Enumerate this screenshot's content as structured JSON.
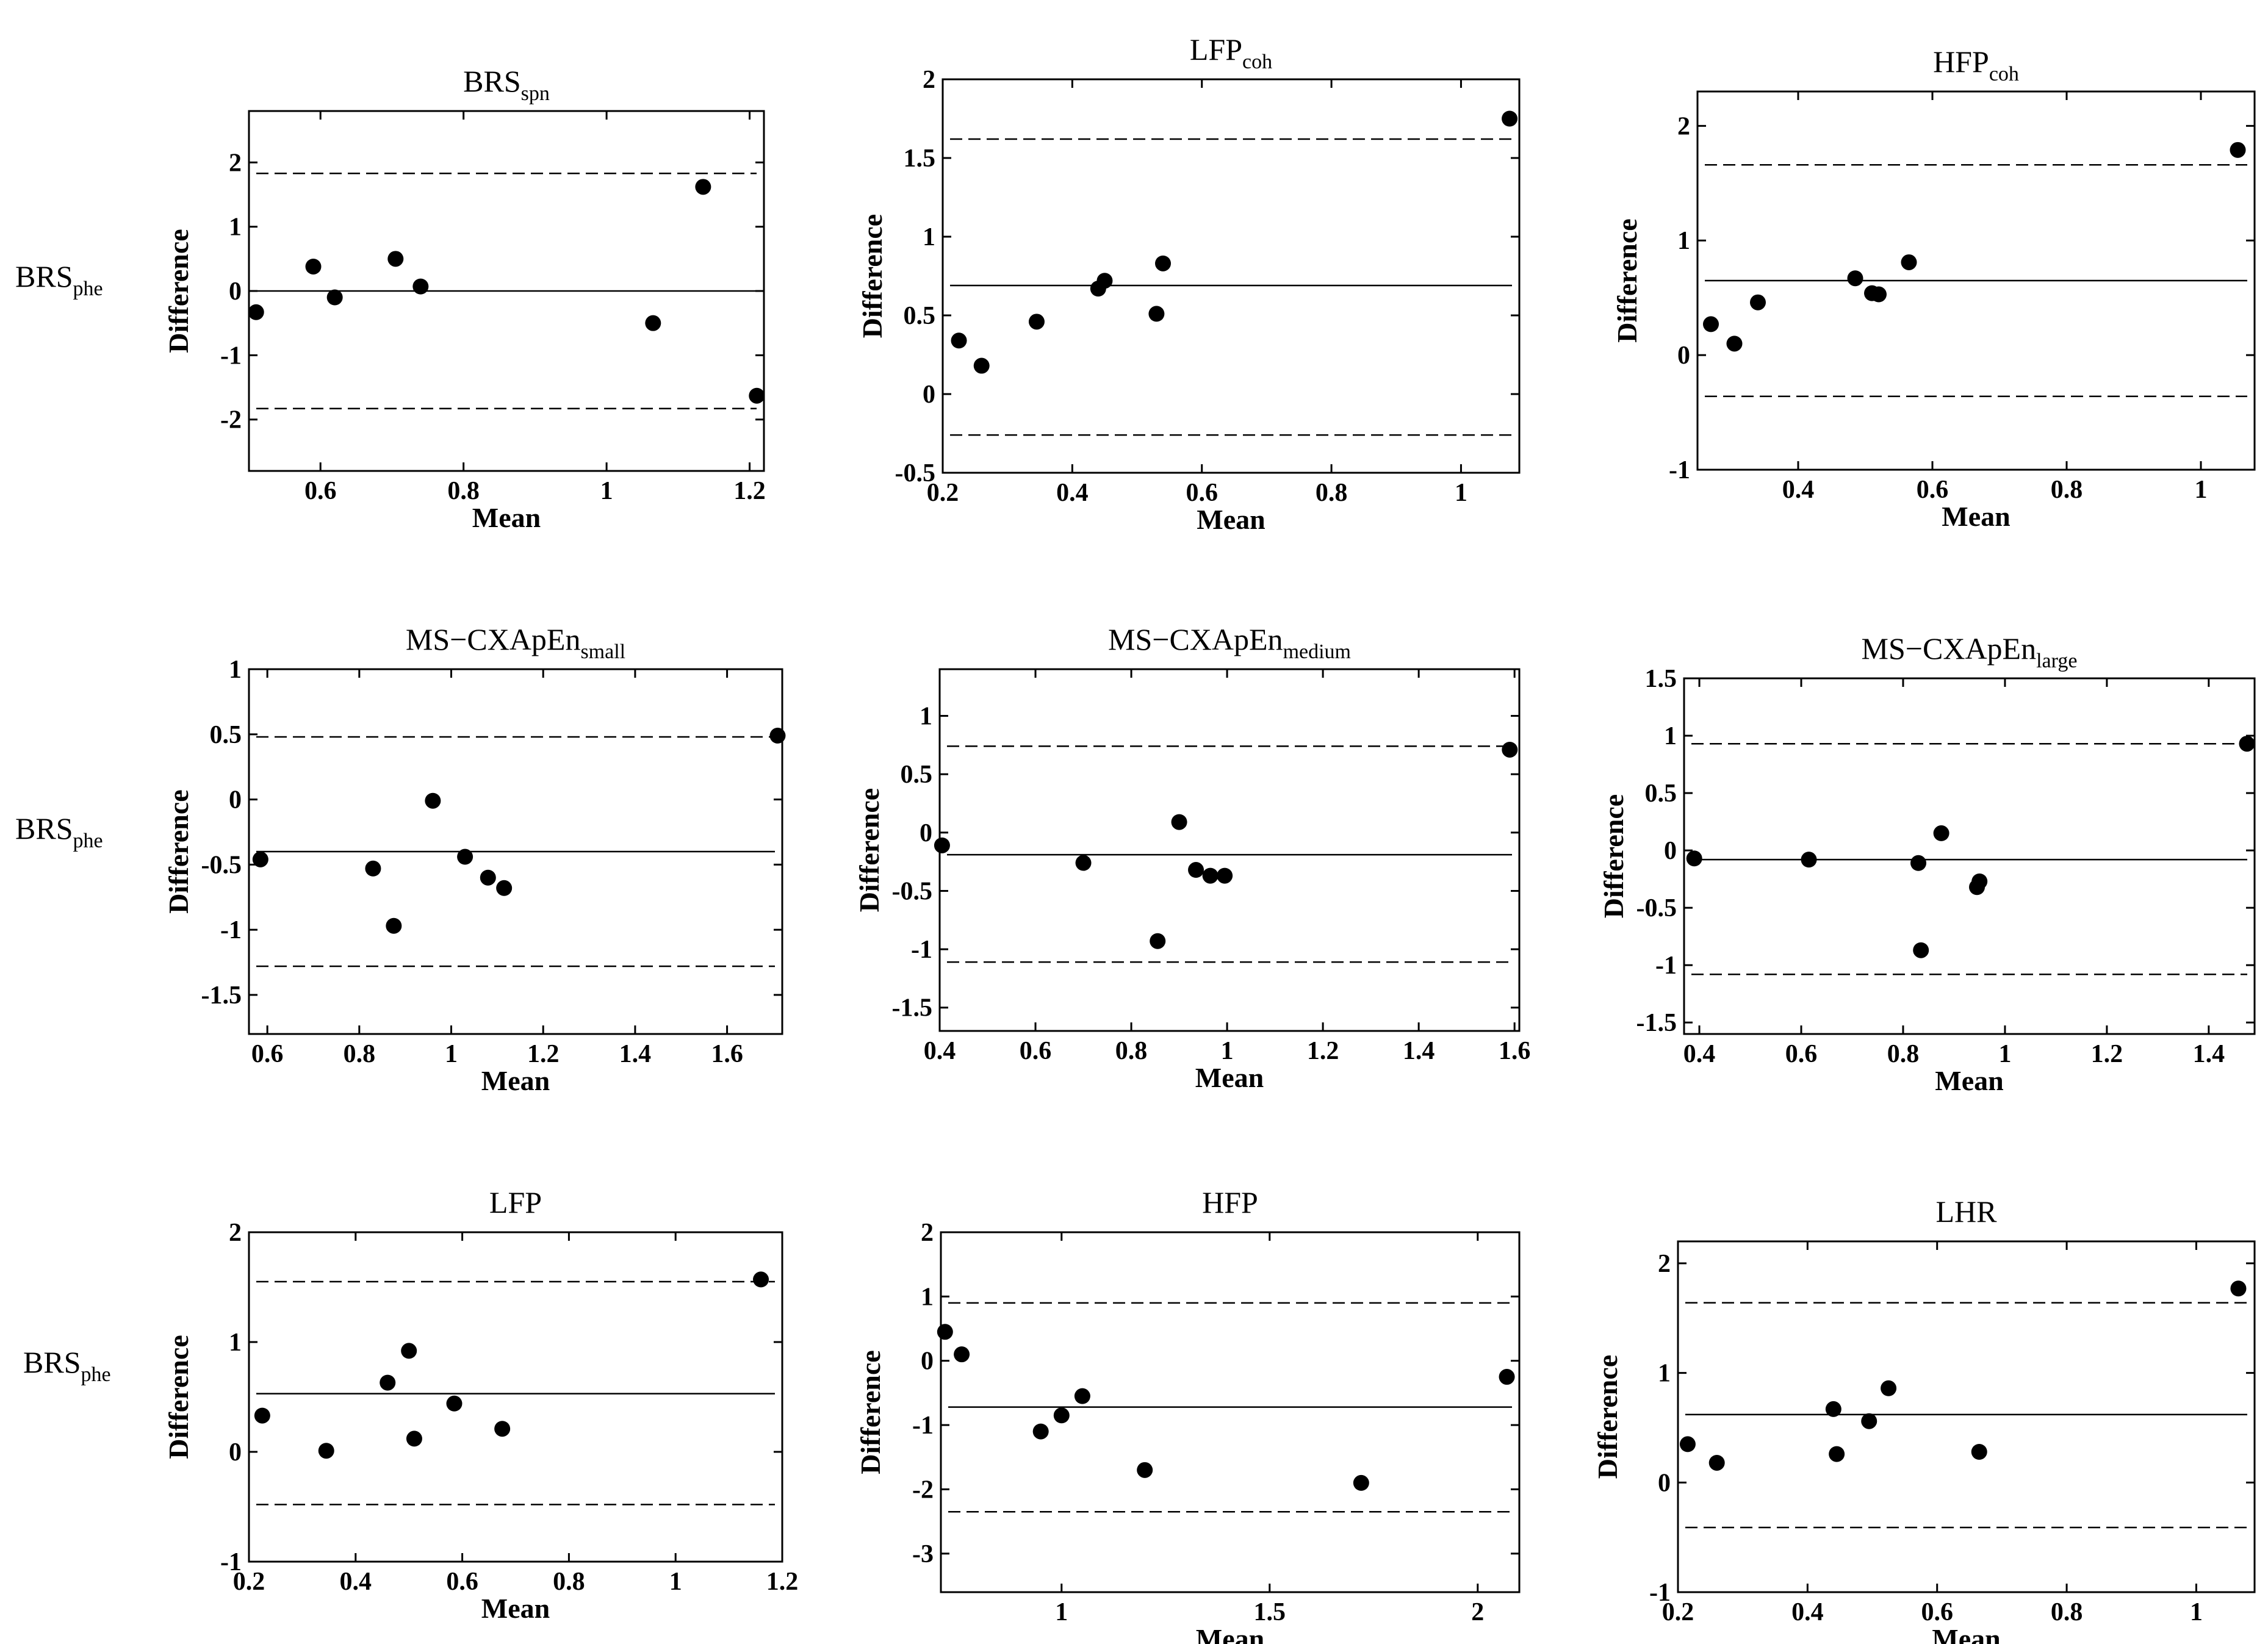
{
  "row_labels": [
    {
      "main": "BRS",
      "sub": "phe"
    },
    {
      "main": "BRS",
      "sub": "phe"
    },
    {
      "main": "BRS",
      "sub": "phe"
    }
  ],
  "chart_data": [
    {
      "type": "scatter",
      "title": "BRS",
      "title_sub": "spn",
      "xlabel": "Mean",
      "ylabel": "Difference",
      "xlim": [
        0.5,
        1.22
      ],
      "ylim": [
        -2.8,
        2.8
      ],
      "xticks": [
        0.6,
        0.8,
        1,
        1.2
      ],
      "xtick_labels": [
        "0.6",
        "0.8",
        "1",
        "1.2"
      ],
      "yticks": [
        -2,
        -1,
        0,
        1,
        2
      ],
      "ytick_labels": [
        "-2",
        "-1",
        "0",
        "1",
        "2"
      ],
      "x": [
        0.51,
        0.59,
        0.62,
        0.705,
        0.74,
        1.065,
        1.135,
        1.21
      ],
      "y": [
        -0.33,
        0.38,
        -0.1,
        0.5,
        0.07,
        -0.5,
        1.62,
        -1.63
      ],
      "mean_line": 0.0,
      "limits": [
        1.83,
        -1.83
      ]
    },
    {
      "type": "scatter",
      "title": "LFP",
      "title_sub": "coh",
      "xlabel": "Mean",
      "ylabel": "Difference",
      "xlim": [
        0.2,
        1.09
      ],
      "ylim": [
        -0.5,
        2
      ],
      "xticks": [
        0.2,
        0.4,
        0.6,
        0.8,
        1
      ],
      "xtick_labels": [
        "0.2",
        "0.4",
        "0.6",
        "0.8",
        "1"
      ],
      "yticks": [
        -0.5,
        0,
        0.5,
        1,
        1.5,
        2
      ],
      "ytick_labels": [
        "-0.5",
        "0",
        "0.5",
        "1",
        "1.5",
        "2"
      ],
      "x": [
        0.225,
        0.26,
        0.345,
        0.44,
        0.45,
        0.53,
        0.54,
        1.075
      ],
      "y": [
        0.34,
        0.18,
        0.46,
        0.67,
        0.72,
        0.51,
        0.83,
        1.75
      ],
      "mean_line": 0.69,
      "limits": [
        1.62,
        -0.26
      ]
    },
    {
      "type": "scatter",
      "title": "HFP",
      "title_sub": "coh",
      "xlabel": "Mean",
      "ylabel": "Difference",
      "xlim": [
        0.25,
        1.08
      ],
      "ylim": [
        -1,
        2.3
      ],
      "xticks": [
        0.4,
        0.6,
        0.8,
        1
      ],
      "xtick_labels": [
        "0.4",
        "0.6",
        "0.8",
        "1"
      ],
      "yticks": [
        -1,
        0,
        1,
        2
      ],
      "ytick_labels": [
        "-1",
        "0",
        "1",
        "2"
      ],
      "x": [
        0.27,
        0.305,
        0.34,
        0.485,
        0.51,
        0.52,
        0.565,
        1.055
      ],
      "y": [
        0.27,
        0.1,
        0.46,
        0.67,
        0.54,
        0.53,
        0.81,
        1.79
      ],
      "mean_line": 0.65,
      "limits": [
        1.66,
        -0.36
      ]
    },
    {
      "type": "scatter",
      "title": "MS−CXApEn",
      "title_sub": "small",
      "xlabel": "Mean",
      "ylabel": "Difference",
      "xlim": [
        0.56,
        1.72
      ],
      "ylim": [
        -1.8,
        1
      ],
      "xticks": [
        0.6,
        0.8,
        1,
        1.2,
        1.4,
        1.6
      ],
      "xtick_labels": [
        "0.6",
        "0.8",
        "1",
        "1.2",
        "1.4",
        "1.6"
      ],
      "yticks": [
        -1.5,
        -1,
        -0.5,
        0,
        0.5,
        1
      ],
      "ytick_labels": [
        "-1.5",
        "-1",
        "-0.5",
        "0",
        "0.5",
        "1"
      ],
      "x": [
        0.585,
        0.83,
        0.875,
        0.96,
        1.03,
        1.08,
        1.115,
        1.71
      ],
      "y": [
        -0.46,
        -0.53,
        -0.97,
        -0.01,
        -0.44,
        -0.6,
        -0.68,
        0.49
      ],
      "mean_line": -0.4,
      "limits": [
        0.48,
        -1.28
      ]
    },
    {
      "type": "scatter",
      "title": "MS−CXApEn",
      "title_sub": "medium",
      "xlabel": "Mean",
      "ylabel": "Difference",
      "xlim": [
        0.4,
        1.61
      ],
      "ylim": [
        -1.7,
        1.4
      ],
      "xticks": [
        0.4,
        0.6,
        0.8,
        1,
        1.2,
        1.4,
        1.6
      ],
      "xtick_labels": [
        "0.4",
        "0.6",
        "0.8",
        "1",
        "1.2",
        "1.4",
        "1.6"
      ],
      "yticks": [
        -1.5,
        -1,
        -0.5,
        0,
        0.5,
        1
      ],
      "ytick_labels": [
        "-1.5",
        "-1",
        "-0.5",
        "0",
        "0.5",
        "1"
      ],
      "x": [
        0.405,
        0.7,
        0.855,
        0.9,
        0.935,
        0.965,
        0.995,
        1.59
      ],
      "y": [
        -0.11,
        -0.26,
        -0.93,
        0.09,
        -0.32,
        -0.37,
        -0.37,
        0.71
      ],
      "mean_line": -0.19,
      "limits": [
        0.74,
        -1.11
      ]
    },
    {
      "type": "scatter",
      "title": "MS−CXApEn",
      "title_sub": "large",
      "xlabel": "Mean",
      "ylabel": "Difference",
      "xlim": [
        0.37,
        1.49
      ],
      "ylim": [
        -1.6,
        1.5
      ],
      "xticks": [
        0.4,
        0.6,
        0.8,
        1,
        1.2,
        1.4
      ],
      "xtick_labels": [
        "0.4",
        "0.6",
        "0.8",
        "1",
        "1.2",
        "1.4"
      ],
      "yticks": [
        -1.5,
        -1,
        -0.5,
        0,
        0.5,
        1,
        1.5
      ],
      "ytick_labels": [
        "-1.5",
        "-1",
        "-0.5",
        "0",
        "0.5",
        "1",
        "1.5"
      ],
      "x": [
        0.39,
        0.615,
        0.83,
        0.835,
        0.875,
        0.945,
        0.95,
        1.475
      ],
      "y": [
        -0.07,
        -0.08,
        -0.11,
        -0.87,
        0.15,
        -0.32,
        -0.27,
        0.93
      ],
      "mean_line": -0.08,
      "limits": [
        0.93,
        -1.08
      ]
    },
    {
      "type": "scatter",
      "title": "LFP",
      "title_sub": "",
      "xlabel": "Mean",
      "ylabel": "Difference",
      "xlim": [
        0.2,
        1.2
      ],
      "ylim": [
        -1,
        2
      ],
      "xticks": [
        0.2,
        0.4,
        0.6,
        0.8,
        1,
        1.2
      ],
      "xtick_labels": [
        "0.2",
        "0.4",
        "0.6",
        "0.8",
        "1",
        "1.2"
      ],
      "yticks": [
        -1,
        0,
        1,
        2
      ],
      "ytick_labels": [
        "-1",
        "0",
        "1",
        "2"
      ],
      "x": [
        0.225,
        0.345,
        0.46,
        0.5,
        0.51,
        0.585,
        0.675,
        1.16
      ],
      "y": [
        0.33,
        0.01,
        0.63,
        0.92,
        0.12,
        0.44,
        0.21,
        1.57
      ],
      "mean_line": 0.53,
      "limits": [
        1.55,
        -0.48
      ]
    },
    {
      "type": "scatter",
      "title": "HFP",
      "title_sub": "",
      "xlabel": "Mean",
      "ylabel": "Difference",
      "xlim": [
        0.71,
        2.1
      ],
      "ylim": [
        -3.6,
        2
      ],
      "xticks": [
        1,
        1.5,
        2
      ],
      "xtick_labels": [
        "1",
        "1.5",
        "2"
      ],
      "yticks": [
        -3,
        -2,
        -1,
        0,
        1,
        2
      ],
      "ytick_labels": [
        "-3",
        "-2",
        "-1",
        "0",
        "1",
        "2"
      ],
      "x": [
        0.72,
        0.76,
        0.95,
        1.0,
        1.05,
        1.2,
        1.72,
        2.07
      ],
      "y": [
        0.45,
        0.1,
        -1.1,
        -0.85,
        -0.55,
        -1.7,
        -1.9,
        -0.25
      ],
      "mean_line": -0.72,
      "limits": [
        0.9,
        -2.35
      ]
    },
    {
      "type": "scatter",
      "title": "LHR",
      "title_sub": "",
      "xlabel": "Mean",
      "ylabel": "Difference",
      "xlim": [
        0.2,
        1.09
      ],
      "ylim": [
        -1,
        2.2
      ],
      "xticks": [
        0.2,
        0.4,
        0.6,
        0.8,
        1
      ],
      "xtick_labels": [
        "0.2",
        "0.4",
        "0.6",
        "0.8",
        "1"
      ],
      "yticks": [
        -1,
        0,
        1,
        2
      ],
      "ytick_labels": [
        "-1",
        "0",
        "1",
        "2"
      ],
      "x": [
        0.215,
        0.26,
        0.44,
        0.445,
        0.495,
        0.525,
        0.665,
        1.065
      ],
      "y": [
        0.35,
        0.18,
        0.67,
        0.26,
        0.56,
        0.86,
        0.28,
        1.77
      ],
      "mean_line": 0.62,
      "limits": [
        1.64,
        -0.41
      ]
    }
  ]
}
